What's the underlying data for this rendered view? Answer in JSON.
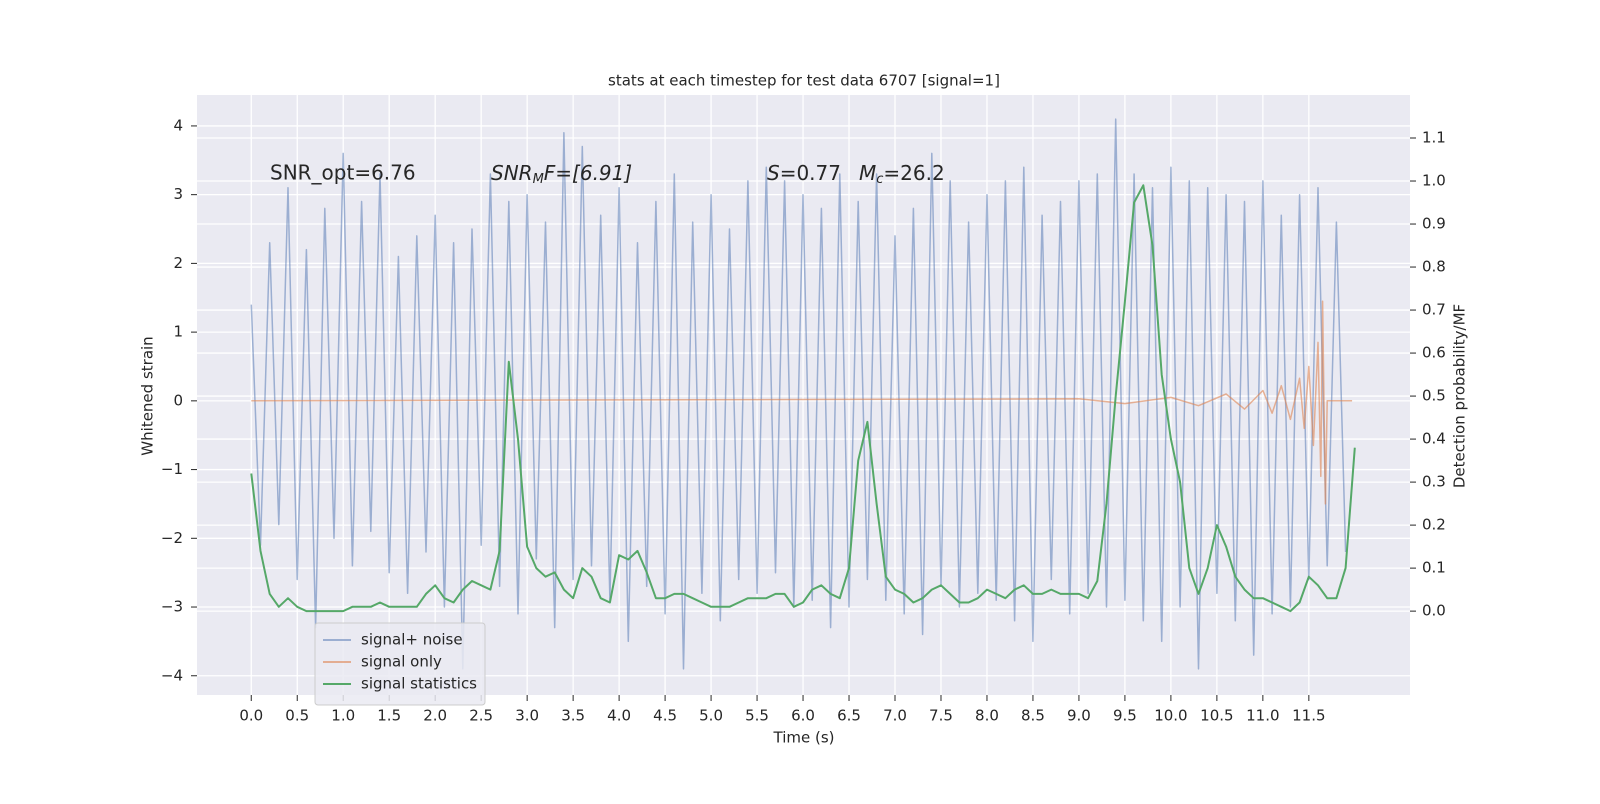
{
  "chart_data": {
    "type": "line",
    "title": "stats at each timestep for test data 6707 [signal=1]",
    "xlabel": "Time (s)",
    "ylabel": "Whitened strain",
    "y2label": "Detection probability/MF",
    "annotations": [
      "SNR_opt=6.76",
      [
        "SNR",
        "M",
        "F=[6.91]"
      ],
      [
        "S",
        "=0.77"
      ],
      [
        "M",
        "c",
        "=26.2"
      ]
    ],
    "xlim": [
      -0.59,
      12.6
    ],
    "ylim": [
      -4.28,
      4.45
    ],
    "y2lim": [
      -0.195,
      1.2
    ],
    "xticks": [
      {
        "value": 0,
        "label": "0.0"
      },
      0.5,
      {
        "value": 1,
        "label": "1.0"
      },
      1.5,
      {
        "value": 2,
        "label": "2.0"
      },
      2.5,
      {
        "value": 3,
        "label": "3.0"
      },
      3.5,
      {
        "value": 4,
        "label": "4.0"
      },
      4.5,
      {
        "value": 5,
        "label": "5.0"
      },
      5.5,
      {
        "value": 6,
        "label": "6.0"
      },
      6.5,
      {
        "value": 7,
        "label": "7.0"
      },
      7.5,
      {
        "value": 8,
        "label": "8.0"
      },
      8.5,
      {
        "value": 9,
        "label": "9.0"
      },
      9.5,
      {
        "value": 10,
        "label": "10.0"
      },
      10.5,
      {
        "value": 11,
        "label": "11.0"
      },
      11.5
    ],
    "yticks": [
      {
        "value": -4,
        "label": "−4"
      },
      {
        "value": -3,
        "label": "−3"
      },
      {
        "value": -2,
        "label": "−2"
      },
      {
        "value": -1,
        "label": "−1"
      },
      0,
      1,
      2,
      3,
      4
    ],
    "y2ticks": [
      {
        "value": 0,
        "label": "0.0"
      },
      0.1,
      0.2,
      0.3,
      0.4,
      0.5,
      0.6,
      0.7,
      0.8,
      0.9,
      {
        "value": 1,
        "label": "1.0"
      },
      1.1
    ],
    "grid": true,
    "legend": "lower left",
    "series": [
      {
        "name": "signal+ noise",
        "color": "#4c72b0",
        "opacity": 0.5,
        "step": 0.1,
        "values": [
          1.4,
          -2.1,
          2.3,
          -1.8,
          3.1,
          -2.6,
          2.2,
          -3.3,
          2.8,
          -2.0,
          3.6,
          -2.4,
          2.9,
          -1.9,
          3.3,
          -2.5,
          2.1,
          -2.8,
          2.4,
          -2.2,
          2.7,
          -3.0,
          2.3,
          -3.9,
          2.5,
          -2.1,
          3.3,
          -2.7,
          2.9,
          -3.1,
          3.0,
          -2.3,
          2.6,
          -3.3,
          3.9,
          -2.6,
          3.7,
          -2.4,
          2.7,
          -2.9,
          3.1,
          -3.5,
          2.3,
          -2.7,
          2.9,
          -3.1,
          3.3,
          -3.9,
          2.6,
          -2.8,
          3.0,
          -3.2,
          2.5,
          -2.6,
          3.2,
          -2.8,
          3.4,
          -2.5,
          3.2,
          -3.0,
          3.0,
          -2.9,
          2.8,
          -3.3,
          3.3,
          -3.0,
          2.9,
          -2.6,
          3.3,
          -2.9,
          2.4,
          -3.1,
          2.8,
          -3.4,
          3.6,
          -2.7,
          3.2,
          -3.0,
          2.6,
          -2.8,
          3.0,
          -2.9,
          3.2,
          -3.2,
          3.4,
          -3.5,
          2.7,
          -2.6,
          2.9,
          -3.1,
          3.2,
          -2.8,
          3.3,
          -3.0,
          4.1,
          -2.9,
          3.3,
          -3.2,
          3.1,
          -3.5,
          3.4,
          -3.0,
          3.2,
          -3.9,
          3.1,
          -2.8,
          3.0,
          -3.2,
          2.9,
          -3.7,
          3.2,
          -3.1,
          2.7,
          -3.0,
          3.0,
          -2.6,
          3.1,
          -2.4,
          2.6,
          -2.2
        ]
      },
      {
        "name": "signal only",
        "color": "#dd8452",
        "opacity": 0.6,
        "x": [
          0,
          9.0,
          9.5,
          10.0,
          10.3,
          10.6,
          10.8,
          11.0,
          11.1,
          11.2,
          11.3,
          11.4,
          11.45,
          11.5,
          11.55,
          11.6,
          11.63,
          11.65,
          11.68,
          11.7,
          11.97
        ],
        "values": [
          0,
          0.03,
          -0.04,
          0.05,
          -0.07,
          0.1,
          -0.12,
          0.15,
          -0.18,
          0.22,
          -0.27,
          0.33,
          -0.4,
          0.5,
          -0.65,
          0.85,
          -1.1,
          1.45,
          -1.5,
          0,
          0
        ]
      },
      {
        "name": "signal statistics",
        "color": "#55a868",
        "axis": "y2",
        "step": 0.1,
        "values": [
          0.32,
          0.14,
          0.04,
          0.01,
          0.03,
          0.01,
          0,
          0,
          0,
          0,
          0,
          0.01,
          0.01,
          0.01,
          0.02,
          0.01,
          0.01,
          0.01,
          0.01,
          0.04,
          0.06,
          0.03,
          0.02,
          0.05,
          0.07,
          0.06,
          0.05,
          0.14,
          0.58,
          0.4,
          0.15,
          0.1,
          0.08,
          0.09,
          0.05,
          0.03,
          0.1,
          0.08,
          0.03,
          0.02,
          0.13,
          0.12,
          0.14,
          0.09,
          0.03,
          0.03,
          0.04,
          0.04,
          0.03,
          0.02,
          0.01,
          0.01,
          0.01,
          0.02,
          0.03,
          0.03,
          0.03,
          0.04,
          0.04,
          0.01,
          0.02,
          0.05,
          0.06,
          0.04,
          0.03,
          0.1,
          0.35,
          0.44,
          0.25,
          0.08,
          0.05,
          0.04,
          0.02,
          0.03,
          0.05,
          0.06,
          0.04,
          0.02,
          0.02,
          0.03,
          0.05,
          0.04,
          0.03,
          0.05,
          0.06,
          0.04,
          0.04,
          0.05,
          0.04,
          0.04,
          0.04,
          0.03,
          0.07,
          0.25,
          0.5,
          0.72,
          0.95,
          0.99,
          0.85,
          0.55,
          0.4,
          0.3,
          0.1,
          0.04,
          0.1,
          0.2,
          0.15,
          0.08,
          0.05,
          0.03,
          0.03,
          0.02,
          0.01,
          0,
          0.02,
          0.08,
          0.06,
          0.03,
          0.03,
          0.1,
          0.38
        ]
      }
    ]
  }
}
